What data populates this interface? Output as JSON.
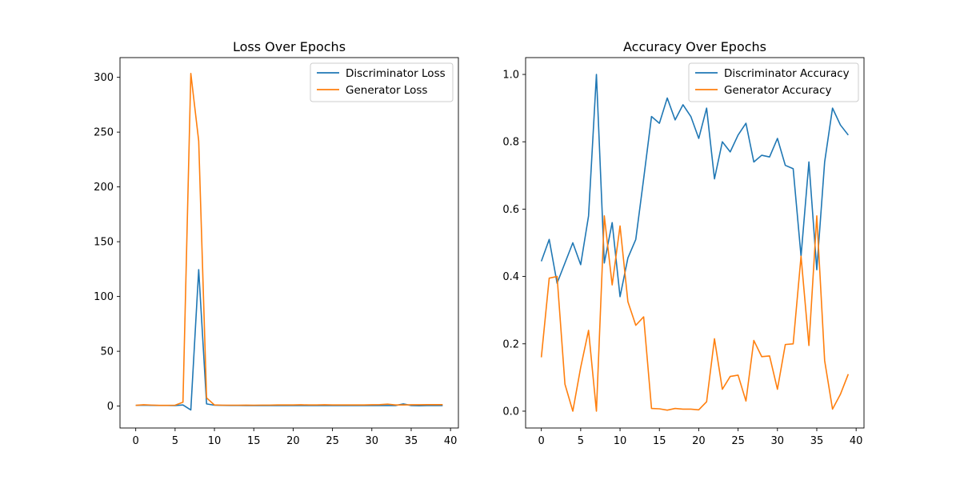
{
  "chart_data": [
    {
      "type": "line",
      "title": "Loss Over Epochs",
      "xlabel": "",
      "ylabel": "",
      "xlim": [
        -2,
        41
      ],
      "ylim": [
        -20,
        318
      ],
      "x_ticks": [
        0,
        5,
        10,
        15,
        20,
        25,
        30,
        35,
        40
      ],
      "y_ticks": [
        0,
        50,
        100,
        150,
        200,
        250,
        300
      ],
      "grid": false,
      "legend_position": "upper right",
      "x": [
        0,
        1,
        2,
        3,
        4,
        5,
        6,
        7,
        8,
        9,
        10,
        11,
        12,
        13,
        14,
        15,
        16,
        17,
        18,
        19,
        20,
        21,
        22,
        23,
        24,
        25,
        26,
        27,
        28,
        29,
        30,
        31,
        32,
        33,
        34,
        35,
        36,
        37,
        38,
        39
      ],
      "series": [
        {
          "name": "Discriminator Loss",
          "color": "#1f77b4",
          "values": [
            0.7,
            0.8,
            0.7,
            0.6,
            0.6,
            0.5,
            1.0,
            -3.5,
            124.5,
            2.0,
            0.8,
            0.7,
            0.6,
            0.6,
            0.5,
            0.5,
            0.5,
            0.5,
            0.5,
            0.5,
            0.5,
            0.5,
            0.5,
            0.5,
            0.5,
            0.5,
            0.5,
            0.5,
            0.5,
            0.5,
            0.5,
            0.5,
            0.5,
            0.5,
            2.0,
            0.5,
            0.3,
            0.5,
            0.5,
            0.5
          ]
        },
        {
          "name": "Generator Loss",
          "color": "#ff7f0e",
          "values": [
            0.7,
            1.2,
            0.9,
            0.7,
            0.7,
            0.8,
            3.5,
            303.5,
            242.0,
            7.5,
            1.0,
            0.8,
            0.8,
            0.8,
            0.9,
            0.8,
            0.9,
            0.9,
            1.0,
            1.0,
            1.0,
            1.2,
            1.0,
            1.0,
            1.2,
            1.0,
            1.0,
            1.0,
            1.0,
            1.0,
            1.2,
            1.3,
            1.8,
            1.0,
            1.0,
            1.2,
            1.2,
            1.3,
            1.3,
            1.3
          ]
        }
      ]
    },
    {
      "type": "line",
      "title": "Accuracy Over Epochs",
      "xlabel": "",
      "ylabel": "",
      "xlim": [
        -2,
        41
      ],
      "ylim": [
        -0.05,
        1.05
      ],
      "x_ticks": [
        0,
        5,
        10,
        15,
        20,
        25,
        30,
        35,
        40
      ],
      "y_ticks": [
        0.0,
        0.2,
        0.4,
        0.6,
        0.8,
        1.0
      ],
      "grid": false,
      "legend_position": "upper right",
      "x": [
        0,
        1,
        2,
        3,
        4,
        5,
        6,
        7,
        8,
        9,
        10,
        11,
        12,
        13,
        14,
        15,
        16,
        17,
        18,
        19,
        20,
        21,
        22,
        23,
        24,
        25,
        26,
        27,
        28,
        29,
        30,
        31,
        32,
        33,
        34,
        35,
        36,
        37,
        38,
        39
      ],
      "series": [
        {
          "name": "Discriminator Accuracy",
          "color": "#1f77b4",
          "values": [
            0.445,
            0.51,
            0.38,
            0.44,
            0.5,
            0.435,
            0.58,
            1.0,
            0.44,
            0.56,
            0.34,
            0.455,
            0.51,
            0.69,
            0.875,
            0.855,
            0.93,
            0.865,
            0.91,
            0.875,
            0.81,
            0.9,
            0.69,
            0.8,
            0.77,
            0.82,
            0.855,
            0.74,
            0.76,
            0.755,
            0.81,
            0.73,
            0.72,
            0.46,
            0.74,
            0.42,
            0.74,
            0.9,
            0.85,
            0.82
          ]
        },
        {
          "name": "Generator Accuracy",
          "color": "#ff7f0e",
          "values": [
            0.16,
            0.395,
            0.4,
            0.08,
            0.0,
            0.13,
            0.24,
            0.0,
            0.58,
            0.375,
            0.55,
            0.325,
            0.255,
            0.28,
            0.008,
            0.007,
            0.003,
            0.008,
            0.006,
            0.006,
            0.004,
            0.028,
            0.215,
            0.065,
            0.103,
            0.107,
            0.03,
            0.21,
            0.162,
            0.164,
            0.065,
            0.198,
            0.2,
            0.46,
            0.195,
            0.58,
            0.15,
            0.006,
            0.05,
            0.11
          ]
        }
      ]
    }
  ]
}
